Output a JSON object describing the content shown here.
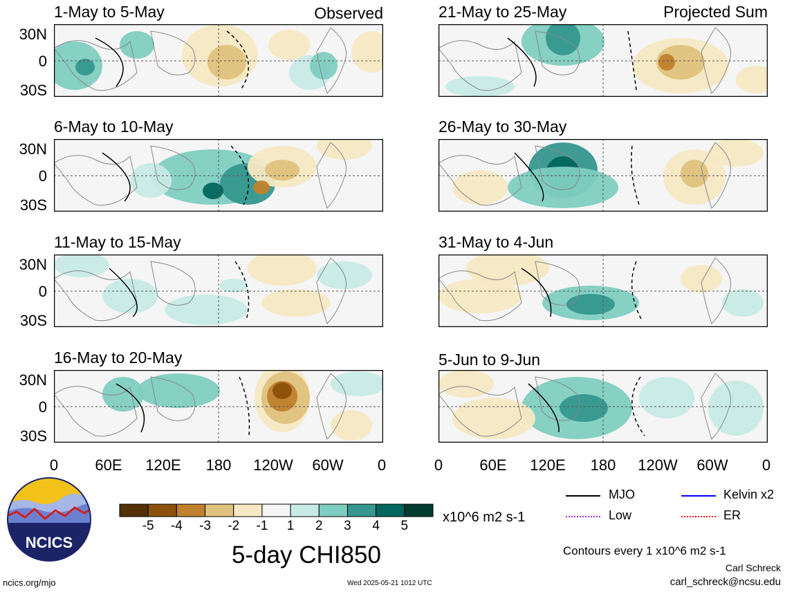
{
  "chart_data": {
    "type": "heatmap",
    "title": "5-day CHI850",
    "units": "x10^6 m2 s-1",
    "panel_labels": {
      "observed": "Observed",
      "projected": "Projected Sum"
    },
    "y_ticks": [
      "30N",
      "0",
      "30S"
    ],
    "x_ticks": [
      "0",
      "60E",
      "120E",
      "180",
      "120W",
      "60W",
      "0"
    ],
    "colorbar": {
      "ticks": [
        "-5",
        "-4",
        "-3",
        "-2",
        "-1",
        "1",
        "2",
        "3",
        "4",
        "5"
      ],
      "colors": [
        "#543005",
        "#8c510a",
        "#bf812d",
        "#dfc27d",
        "#f6e8c3",
        "#f5f5f5",
        "#c7eae5",
        "#80cdc1",
        "#35978f",
        "#01665e",
        "#003c30"
      ]
    },
    "panels": [
      {
        "period": "1-May to 5-May",
        "group": "observed"
      },
      {
        "period": "6-May to 10-May",
        "group": "observed"
      },
      {
        "period": "11-May to 15-May",
        "group": "observed"
      },
      {
        "period": "16-May to 20-May",
        "group": "observed"
      },
      {
        "period": "21-May to 25-May",
        "group": "projected"
      },
      {
        "period": "26-May to 30-May",
        "group": "projected"
      },
      {
        "period": "31-May to 4-Jun",
        "group": "projected"
      },
      {
        "period": "5-Jun to 9-Jun",
        "group": "projected"
      }
    ],
    "legend": [
      {
        "label": "MJO",
        "color": "#000000"
      },
      {
        "label": "Kelvin x2",
        "color": "#0000ff"
      },
      {
        "label": "Low",
        "color": "#a020f0"
      },
      {
        "label": "ER",
        "color": "#ff0000"
      }
    ],
    "contour_note": "Contours every 1 x10^6 m2 s-1"
  },
  "logo_text": "NCICS",
  "footer": {
    "url": "ncics.org/mjo",
    "timestamp": "Wed 2025-05-21 1012 UTC",
    "author": "Carl Schreck",
    "email": "carl_schreck@ncsu.edu"
  }
}
